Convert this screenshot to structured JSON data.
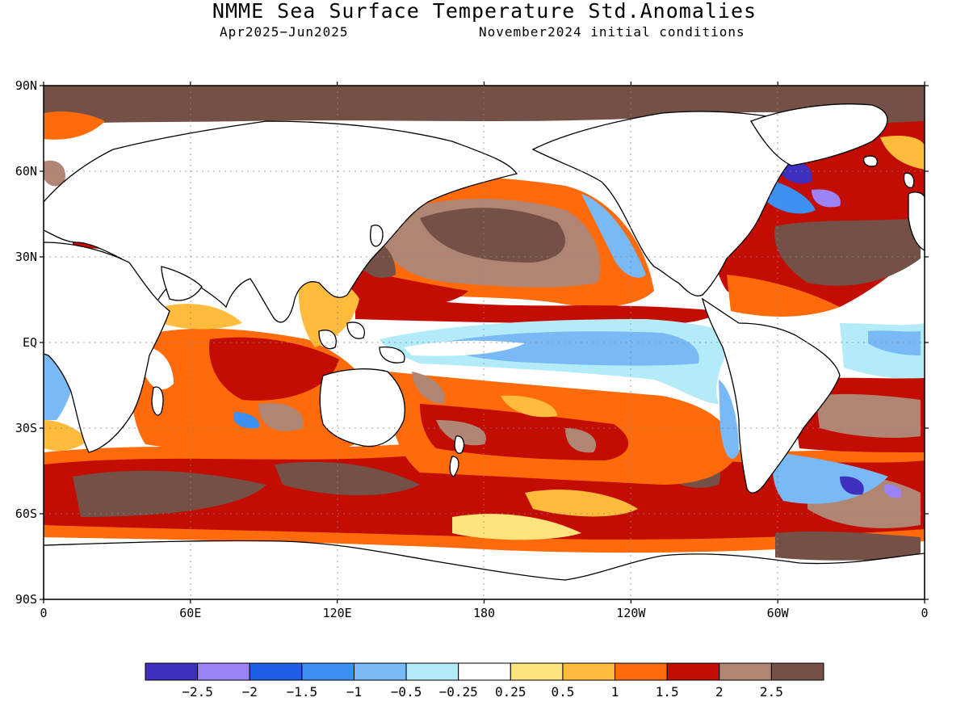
{
  "title": "NMME Sea Surface Temperature Std.Anomalies",
  "subtitle_left": "Apr2025−Jun2025",
  "subtitle_right": "November2024 initial conditions",
  "map": {
    "lon_range": [
      0,
      360
    ],
    "lat_range": [
      -90,
      90
    ],
    "grid": "dotted",
    "y_ticks": [
      {
        "lat": 90,
        "label": "90N"
      },
      {
        "lat": 60,
        "label": "60N"
      },
      {
        "lat": 30,
        "label": "30N"
      },
      {
        "lat": 0,
        "label": "EQ"
      },
      {
        "lat": -30,
        "label": "30S"
      },
      {
        "lat": -60,
        "label": "60S"
      },
      {
        "lat": -90,
        "label": "90S"
      }
    ],
    "x_ticks": [
      {
        "lon": 0,
        "label": "0"
      },
      {
        "lon": 60,
        "label": "60E"
      },
      {
        "lon": 120,
        "label": "120E"
      },
      {
        "lon": 180,
        "label": "180"
      },
      {
        "lon": 240,
        "label": "120W"
      },
      {
        "lon": 300,
        "label": "60W"
      },
      {
        "lon": 360,
        "label": "0"
      }
    ]
  },
  "colorbar": {
    "colors": [
      "#3e2fbf",
      "#9b83f5",
      "#1f5fe5",
      "#3c90f2",
      "#78b9f6",
      "#b3ebf9",
      "#ffffff",
      "#ffe37d",
      "#ffbb3c",
      "#ff6a0a",
      "#c30c02",
      "#b08574",
      "#745046"
    ],
    "labels": [
      "−2.5",
      "−2",
      "−1.5",
      "−1",
      "−0.5",
      "−0.25",
      "0.25",
      "0.5",
      "1",
      "1.5",
      "2",
      "2.5"
    ]
  }
}
